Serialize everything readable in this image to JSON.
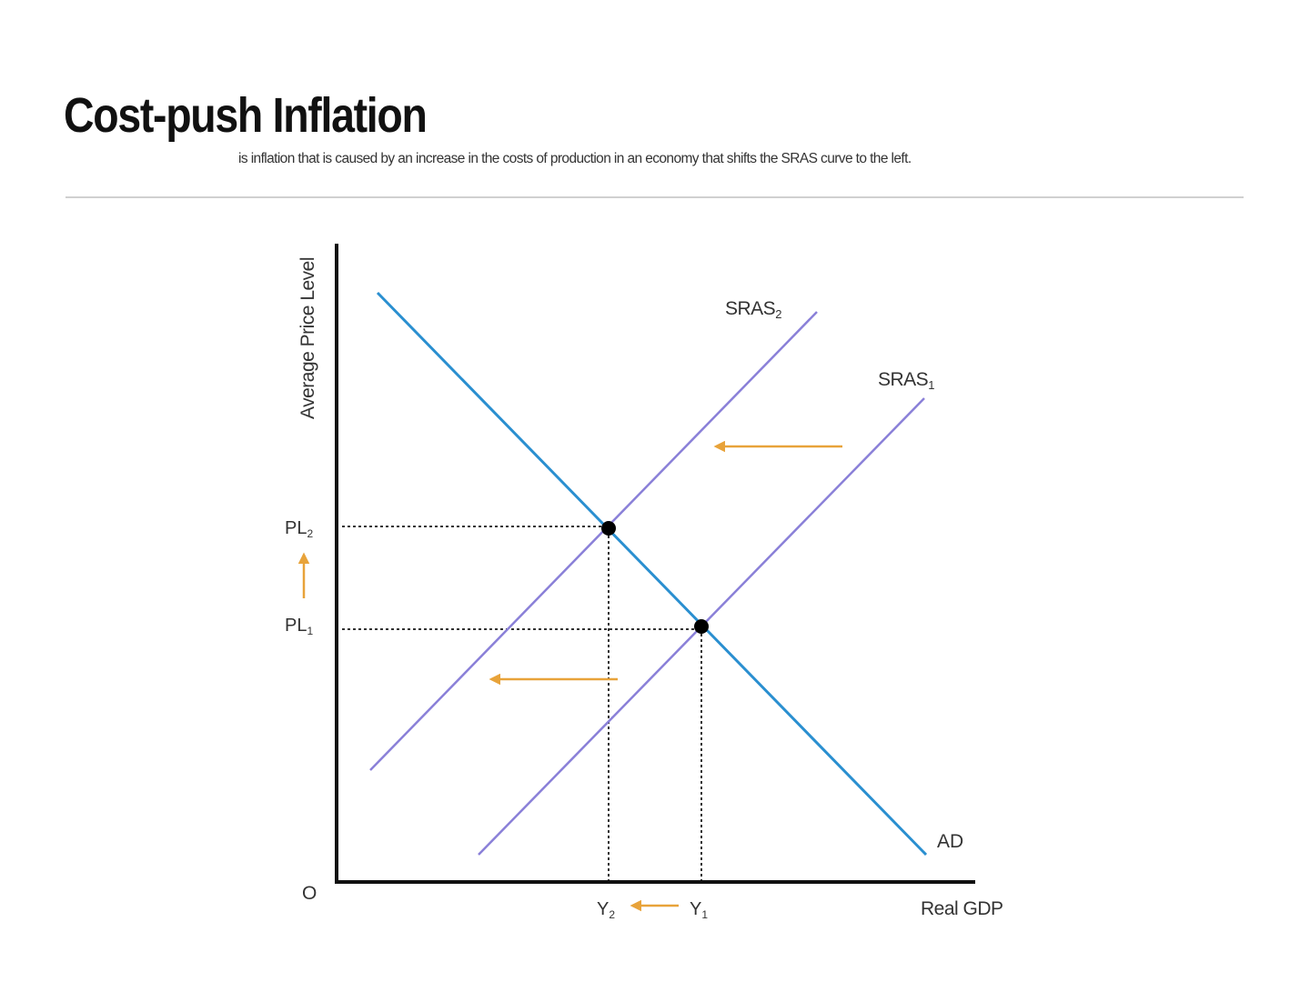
{
  "title": "Cost-push Inflation",
  "subtitle": "is inflation that is caused by an increase in the costs of production in an economy that shifts the SRAS curve to the left.",
  "diagram": {
    "y_axis_label": "Average Price Level",
    "x_axis_label": "Real GDP",
    "origin_label": "O",
    "curves": {
      "ad": "AD",
      "sras1": {
        "base": "SRAS",
        "sub": "1"
      },
      "sras2": {
        "base": "SRAS",
        "sub": "2"
      }
    },
    "price_levels": {
      "pl1": {
        "base": "PL",
        "sub": "1"
      },
      "pl2": {
        "base": "PL",
        "sub": "2"
      }
    },
    "outputs": {
      "y1": {
        "base": "Y",
        "sub": "1"
      },
      "y2": {
        "base": "Y",
        "sub": "2"
      }
    },
    "colors": {
      "ad": "#2a8fd0",
      "sras": "#8a80d8",
      "arrow": "#e8a33a",
      "axis": "#111111"
    }
  }
}
